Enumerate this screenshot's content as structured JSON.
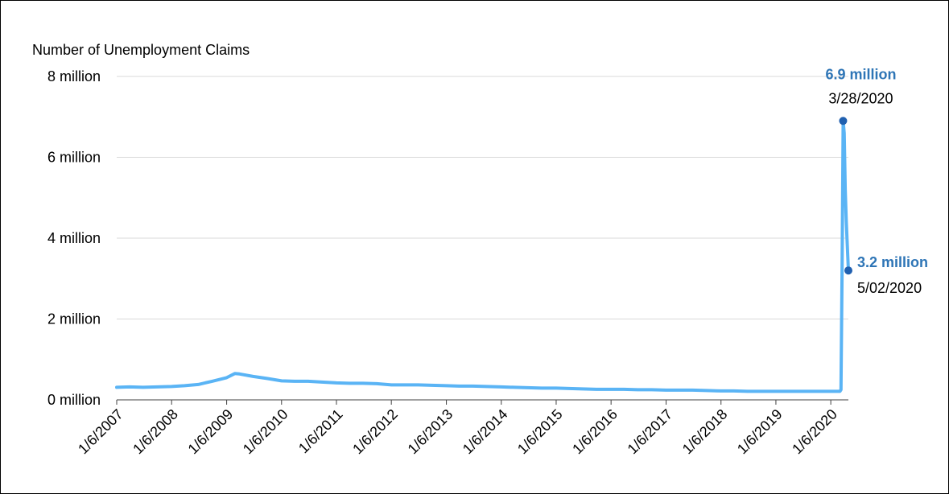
{
  "chart_data": {
    "type": "line",
    "ylabel": "Number of Unemployment Claims",
    "ylim": [
      0,
      8
    ],
    "yticks": [
      {
        "value": 0,
        "label": "0 million"
      },
      {
        "value": 2,
        "label": "2 million"
      },
      {
        "value": 4,
        "label": "4 million"
      },
      {
        "value": 6,
        "label": "6 million"
      },
      {
        "value": 8,
        "label": "8 million"
      }
    ],
    "xrange": [
      "2007-01-06",
      "2020-05-02"
    ],
    "xticks": [
      {
        "date": "2007-01-06",
        "label": "1/6/2007"
      },
      {
        "date": "2008-01-06",
        "label": "1/6/2008"
      },
      {
        "date": "2009-01-06",
        "label": "1/6/2009"
      },
      {
        "date": "2010-01-06",
        "label": "1/6/2010"
      },
      {
        "date": "2011-01-06",
        "label": "1/6/2011"
      },
      {
        "date": "2012-01-06",
        "label": "1/6/2012"
      },
      {
        "date": "2013-01-06",
        "label": "1/6/2013"
      },
      {
        "date": "2014-01-06",
        "label": "1/6/2014"
      },
      {
        "date": "2015-01-06",
        "label": "1/6/2015"
      },
      {
        "date": "2016-01-06",
        "label": "1/6/2016"
      },
      {
        "date": "2017-01-06",
        "label": "1/6/2017"
      },
      {
        "date": "2018-01-06",
        "label": "1/6/2018"
      },
      {
        "date": "2019-01-06",
        "label": "1/6/2019"
      },
      {
        "date": "2020-01-06",
        "label": "1/6/2020"
      }
    ],
    "grid": true,
    "series": [
      {
        "color": "#5ab4f5",
        "points": [
          [
            "2007-01-06",
            0.31
          ],
          [
            "2007-04-01",
            0.32
          ],
          [
            "2007-07-01",
            0.31
          ],
          [
            "2007-10-01",
            0.32
          ],
          [
            "2008-01-06",
            0.33
          ],
          [
            "2008-04-01",
            0.35
          ],
          [
            "2008-07-01",
            0.38
          ],
          [
            "2008-10-01",
            0.46
          ],
          [
            "2009-01-06",
            0.55
          ],
          [
            "2009-03-01",
            0.65
          ],
          [
            "2009-04-01",
            0.64
          ],
          [
            "2009-07-01",
            0.58
          ],
          [
            "2009-10-01",
            0.53
          ],
          [
            "2010-01-06",
            0.47
          ],
          [
            "2010-04-01",
            0.46
          ],
          [
            "2010-07-01",
            0.46
          ],
          [
            "2010-10-01",
            0.44
          ],
          [
            "2011-01-06",
            0.42
          ],
          [
            "2011-04-01",
            0.41
          ],
          [
            "2011-07-01",
            0.41
          ],
          [
            "2011-10-01",
            0.4
          ],
          [
            "2012-01-06",
            0.37
          ],
          [
            "2012-04-01",
            0.37
          ],
          [
            "2012-07-01",
            0.37
          ],
          [
            "2012-10-01",
            0.36
          ],
          [
            "2013-01-06",
            0.35
          ],
          [
            "2013-04-01",
            0.34
          ],
          [
            "2013-07-01",
            0.34
          ],
          [
            "2013-10-01",
            0.33
          ],
          [
            "2014-01-06",
            0.32
          ],
          [
            "2014-04-01",
            0.31
          ],
          [
            "2014-07-01",
            0.3
          ],
          [
            "2014-10-01",
            0.29
          ],
          [
            "2015-01-06",
            0.29
          ],
          [
            "2015-04-01",
            0.28
          ],
          [
            "2015-07-01",
            0.27
          ],
          [
            "2015-10-01",
            0.26
          ],
          [
            "2016-01-06",
            0.26
          ],
          [
            "2016-04-01",
            0.26
          ],
          [
            "2016-07-01",
            0.25
          ],
          [
            "2016-10-01",
            0.25
          ],
          [
            "2017-01-06",
            0.24
          ],
          [
            "2017-04-01",
            0.24
          ],
          [
            "2017-07-01",
            0.24
          ],
          [
            "2017-10-01",
            0.23
          ],
          [
            "2018-01-06",
            0.22
          ],
          [
            "2018-04-01",
            0.22
          ],
          [
            "2018-07-01",
            0.21
          ],
          [
            "2018-10-01",
            0.21
          ],
          [
            "2019-01-06",
            0.21
          ],
          [
            "2019-04-01",
            0.21
          ],
          [
            "2019-07-01",
            0.21
          ],
          [
            "2019-10-01",
            0.21
          ],
          [
            "2020-01-06",
            0.21
          ],
          [
            "2020-03-07",
            0.21
          ],
          [
            "2020-03-14",
            0.25
          ],
          [
            "2020-03-21",
            3.3
          ],
          [
            "2020-03-28",
            6.9
          ],
          [
            "2020-04-04",
            6.6
          ],
          [
            "2020-04-11",
            5.2
          ],
          [
            "2020-04-18",
            4.4
          ],
          [
            "2020-04-25",
            3.8
          ],
          [
            "2020-05-02",
            3.2
          ]
        ]
      }
    ],
    "annotations": [
      {
        "date": "2020-03-28",
        "value": 6.9,
        "value_label": "6.9 million",
        "date_label": "3/28/2020",
        "color": "#2060b0"
      },
      {
        "date": "2020-05-02",
        "value": 3.2,
        "value_label": "3.2 million",
        "date_label": "5/02/2020",
        "color": "#2060b0"
      }
    ]
  }
}
